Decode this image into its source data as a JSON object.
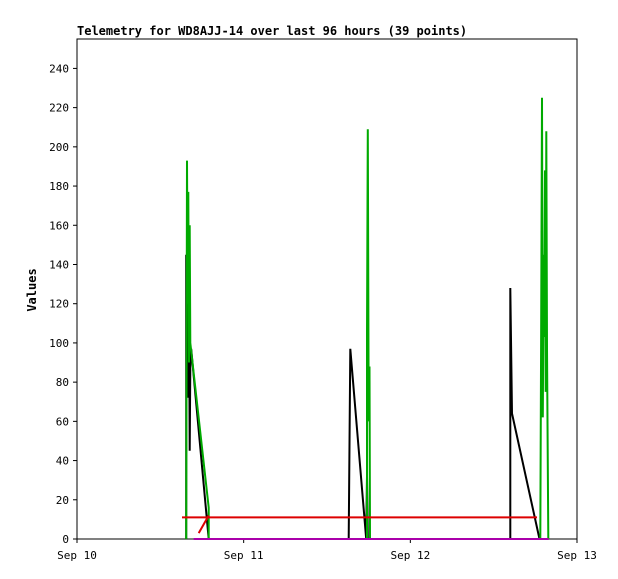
{
  "chart_data": {
    "type": "line",
    "title": "Telemetry for WD8AJJ-14 over last 96 hours (39 points)",
    "ylabel": "Values",
    "xlabel": "",
    "ylim": [
      0,
      255
    ],
    "xlim": [
      0,
      3
    ],
    "yticks": [
      0,
      20,
      40,
      60,
      80,
      100,
      120,
      140,
      160,
      180,
      200,
      220,
      240
    ],
    "xticks": [
      {
        "x": 0,
        "label": "Sep 10"
      },
      {
        "x": 1,
        "label": "Sep 11"
      },
      {
        "x": 2,
        "label": "Sep 12"
      },
      {
        "x": 3,
        "label": "Sep 13"
      }
    ],
    "grid": false,
    "legend": "none",
    "series": [
      {
        "color": "#000000",
        "points": [
          [
            0.655,
            0
          ],
          [
            0.655,
            145
          ],
          [
            0.66,
            90
          ],
          [
            0.665,
            130
          ],
          [
            0.668,
            72
          ],
          [
            0.672,
            124
          ],
          [
            0.676,
            45
          ],
          [
            0.68,
            88
          ],
          [
            0.685,
            97
          ],
          [
            0.79,
            0
          ],
          [
            1.63,
            0
          ],
          [
            1.64,
            97
          ],
          [
            1.735,
            0
          ],
          [
            1.74,
            32
          ],
          [
            1.745,
            0
          ],
          [
            2.6,
            0
          ],
          [
            2.6,
            128
          ],
          [
            2.61,
            64
          ],
          [
            2.775,
            0
          ]
        ]
      },
      {
        "color": "#00aa00",
        "points": [
          [
            0.655,
            0
          ],
          [
            0.66,
            193
          ],
          [
            0.664,
            120
          ],
          [
            0.668,
            177
          ],
          [
            0.672,
            90
          ],
          [
            0.676,
            160
          ],
          [
            0.68,
            100
          ],
          [
            0.79,
            16
          ],
          [
            0.79,
            0
          ],
          [
            1.74,
            0
          ],
          [
            1.74,
            105
          ],
          [
            1.745,
            209
          ],
          [
            1.75,
            60
          ],
          [
            1.755,
            88
          ],
          [
            1.758,
            0
          ],
          [
            2.78,
            0
          ],
          [
            2.785,
            112
          ],
          [
            2.79,
            225
          ],
          [
            2.795,
            62
          ],
          [
            2.8,
            145
          ],
          [
            2.804,
            103
          ],
          [
            2.808,
            188
          ],
          [
            2.812,
            75
          ],
          [
            2.816,
            208
          ],
          [
            2.82,
            97
          ],
          [
            2.828,
            0
          ]
        ]
      },
      {
        "color": "#dd0000",
        "points": [
          [
            0.63,
            11
          ],
          [
            2.76,
            11
          ]
        ]
      },
      {
        "color": "#dd0000",
        "points": [
          [
            0.73,
            3
          ],
          [
            0.79,
            12
          ]
        ]
      },
      {
        "color": "#aa00aa",
        "points": [
          [
            0.7,
            0
          ],
          [
            0.79,
            0
          ],
          [
            1.72,
            0
          ],
          [
            1.76,
            0
          ],
          [
            2.76,
            0
          ],
          [
            2.83,
            0
          ]
        ]
      }
    ]
  }
}
